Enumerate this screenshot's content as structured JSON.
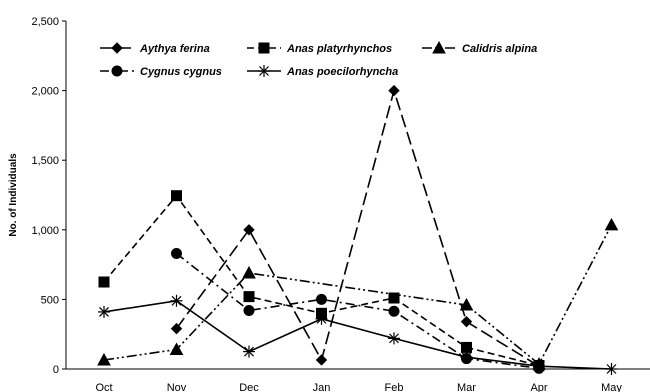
{
  "chart_data": {
    "type": "line",
    "title": "",
    "xlabel": "",
    "ylabel": "No. of Individuals",
    "categories": [
      "Oct",
      "Nov",
      "Dec",
      "Jan",
      "Feb",
      "Mar",
      "Apr",
      "May"
    ],
    "ylim": [
      0,
      2500
    ],
    "yticks": [
      "0",
      "500",
      "1,000",
      "1,500",
      "2,000",
      "2,500"
    ],
    "legend_position": "top-left",
    "series": [
      {
        "name": "Aythya ferina",
        "marker": "diamond",
        "dash": "long-dash",
        "values": [
          null,
          290,
          1000,
          65,
          2000,
          340,
          20,
          null
        ]
      },
      {
        "name": "Anas platyrhynchos",
        "marker": "square",
        "dash": "dash",
        "values": [
          625,
          1245,
          520,
          400,
          510,
          155,
          25,
          null
        ]
      },
      {
        "name": "Calidris alpina",
        "marker": "triangle",
        "dash": "dash-dot-dot",
        "values": [
          65,
          140,
          690,
          null,
          null,
          460,
          35,
          1035
        ]
      },
      {
        "name": "Cygnus cygnus",
        "marker": "circle",
        "dash": "dash-dot",
        "values": [
          null,
          830,
          420,
          500,
          415,
          75,
          5,
          null
        ]
      },
      {
        "name": "Anas poecilorhyncha",
        "marker": "star",
        "dash": "solid",
        "values": [
          410,
          490,
          125,
          360,
          220,
          85,
          20,
          0
        ]
      }
    ]
  }
}
